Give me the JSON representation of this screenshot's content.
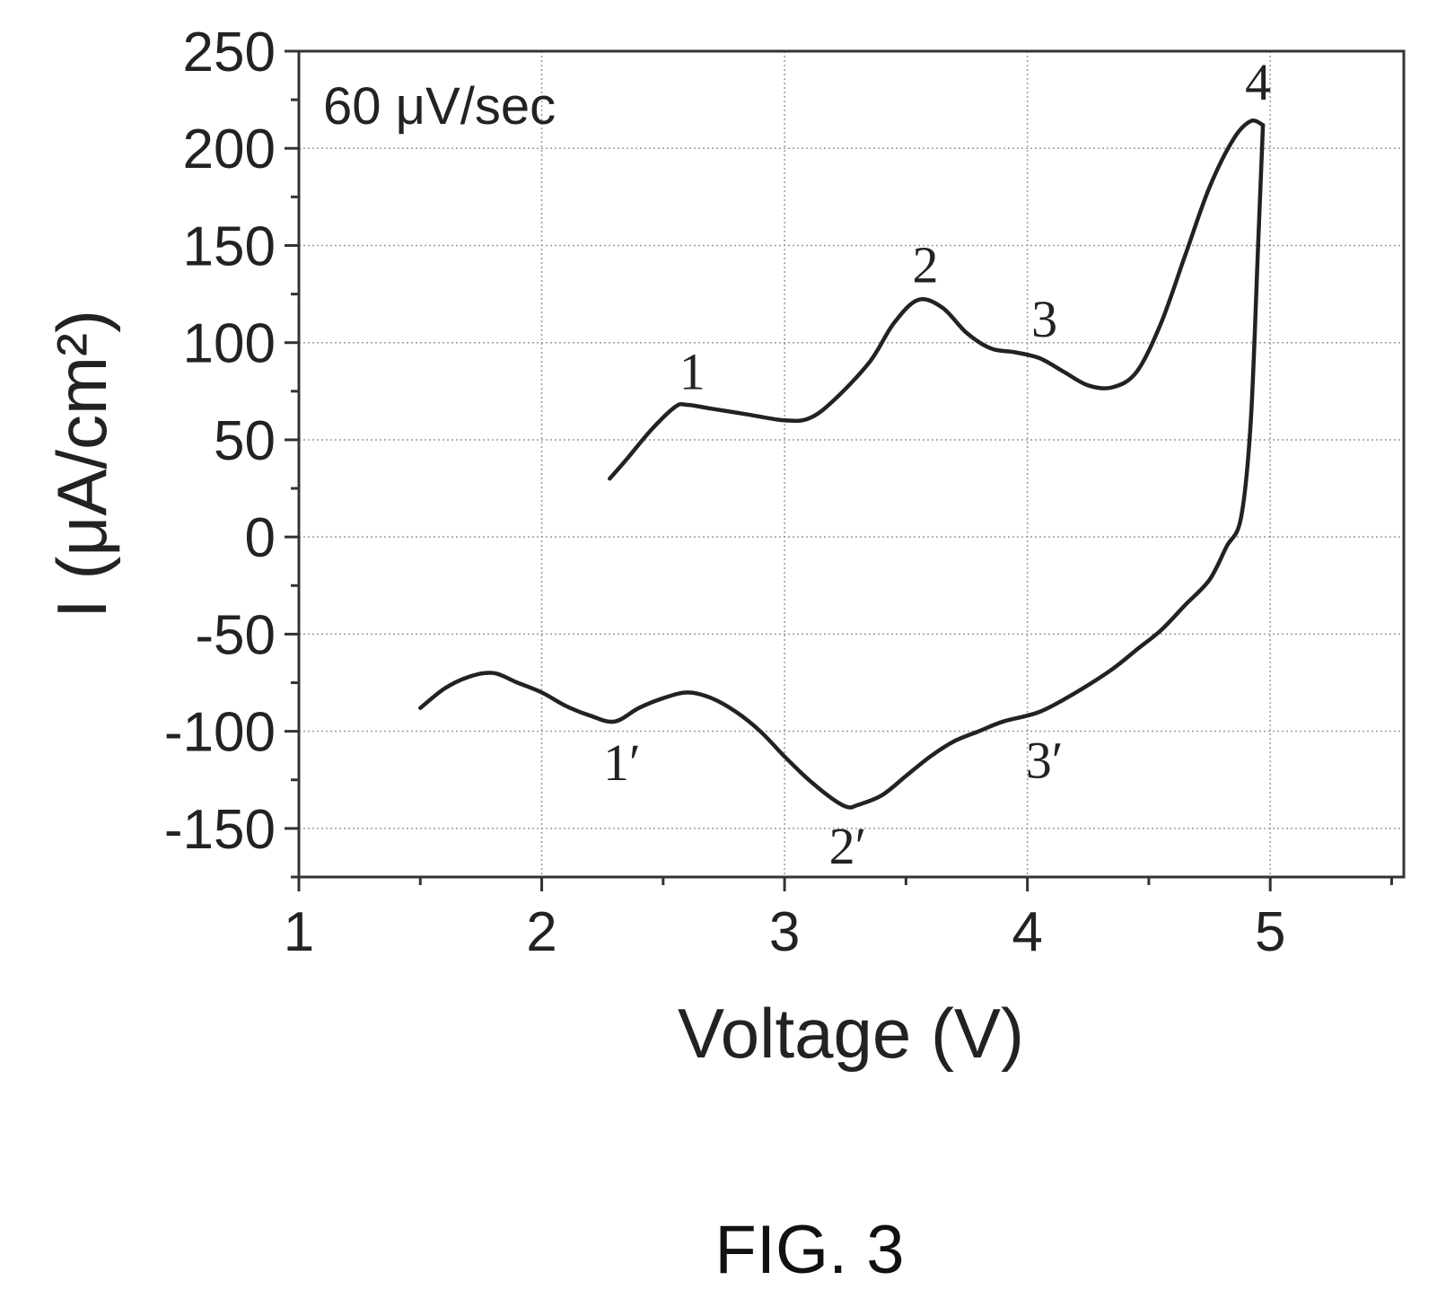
{
  "chart_data": {
    "type": "line",
    "xlabel": "Voltage (V)",
    "ylabel": "I (μA/cm²)",
    "xlim": [
      1,
      5.55
    ],
    "ylim": [
      -175,
      250
    ],
    "xticks": [
      1,
      2,
      3,
      4,
      5
    ],
    "yticks": [
      250,
      200,
      150,
      100,
      50,
      0,
      -50,
      -100,
      -150
    ],
    "grid": true,
    "annotation": "60 μV/sec",
    "series": [
      {
        "role": "anodic",
        "x": [
          2.28,
          2.35,
          2.45,
          2.55,
          2.6,
          2.7,
          2.85,
          3.0,
          3.1,
          3.2,
          3.35,
          3.45,
          3.55,
          3.65,
          3.75,
          3.85,
          3.95,
          4.05,
          4.15,
          4.25,
          4.35,
          4.45,
          4.55,
          4.65,
          4.75,
          4.85,
          4.92,
          4.97
        ],
        "y": [
          30,
          40,
          55,
          67,
          68,
          66,
          63,
          60,
          61,
          70,
          90,
          110,
          122,
          118,
          105,
          97,
          95,
          92,
          85,
          78,
          77,
          85,
          110,
          145,
          180,
          205,
          214,
          212
        ]
      },
      {
        "role": "cathodic",
        "x": [
          4.97,
          4.95,
          4.92,
          4.88,
          4.82,
          4.75,
          4.65,
          4.55,
          4.45,
          4.35,
          4.2,
          4.05,
          3.9,
          3.8,
          3.7,
          3.6,
          3.5,
          3.4,
          3.3,
          3.26,
          3.2,
          3.1,
          3.0,
          2.9,
          2.8,
          2.7,
          2.6,
          2.5,
          2.4,
          2.3,
          2.2,
          2.1,
          2.0,
          1.9,
          1.8,
          1.7,
          1.6,
          1.5
        ],
        "y": [
          212,
          150,
          60,
          10,
          -5,
          -22,
          -35,
          -48,
          -58,
          -68,
          -80,
          -90,
          -95,
          -100,
          -105,
          -113,
          -123,
          -133,
          -138,
          -139,
          -135,
          -125,
          -113,
          -100,
          -90,
          -83,
          -80,
          -83,
          -88,
          -95,
          -92,
          -87,
          -80,
          -75,
          -70,
          -72,
          -78,
          -88
        ]
      }
    ],
    "peak_labels": [
      {
        "text": "1",
        "x": 2.62,
        "y": 76
      },
      {
        "text": "2",
        "x": 3.58,
        "y": 131
      },
      {
        "text": "3",
        "x": 4.07,
        "y": 103
      },
      {
        "text": "4",
        "x": 4.95,
        "y": 225
      },
      {
        "text": "1′",
        "x": 2.33,
        "y": -125
      },
      {
        "text": "2′",
        "x": 3.26,
        "y": -168
      },
      {
        "text": "3′",
        "x": 4.07,
        "y": -124
      }
    ]
  },
  "caption": "FIG. 3"
}
